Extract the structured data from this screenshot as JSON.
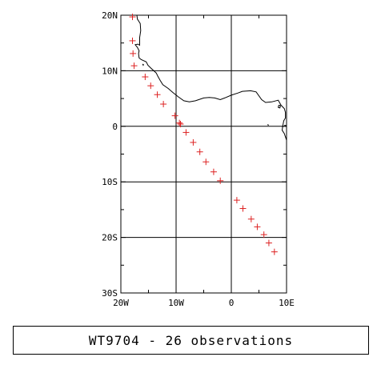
{
  "title": "WT9704 - 26 observations",
  "map": {
    "lon_range": [
      -20,
      10
    ],
    "lat_range": [
      -30,
      20
    ],
    "x_ticks": [
      {
        "value": -20,
        "label": "20W"
      },
      {
        "value": -10,
        "label": "10W"
      },
      {
        "value": 0,
        "label": "0"
      },
      {
        "value": 10,
        "label": "10E"
      }
    ],
    "y_ticks": [
      {
        "value": 20,
        "label": "20N"
      },
      {
        "value": 10,
        "label": "10N"
      },
      {
        "value": 0,
        "label": "0"
      },
      {
        "value": -10,
        "label": "10S"
      },
      {
        "value": -20,
        "label": "20S"
      },
      {
        "value": -30,
        "label": "30S"
      }
    ],
    "grid": true,
    "marker": "plus",
    "marker_color": "#dd2222",
    "frame_color": "#000000",
    "coastline": [
      [
        -17.1,
        20.0
      ],
      [
        -17.0,
        19.3
      ],
      [
        -16.5,
        18.5
      ],
      [
        -16.4,
        17.2
      ],
      [
        -16.6,
        16.0
      ],
      [
        -16.6,
        14.6
      ],
      [
        -16.9,
        14.8
      ],
      [
        -17.4,
        14.7
      ],
      [
        -17.0,
        14.2
      ],
      [
        -16.7,
        13.6
      ],
      [
        -16.8,
        13.1
      ],
      [
        -16.7,
        12.3
      ],
      [
        -16.3,
        12.0
      ],
      [
        -15.4,
        11.6
      ],
      [
        -15.1,
        11.0
      ],
      [
        -14.6,
        10.5
      ],
      [
        -13.6,
        9.6
      ],
      [
        -13.3,
        9.0
      ],
      [
        -12.9,
        8.3
      ],
      [
        -12.4,
        7.5
      ],
      [
        -11.4,
        6.8
      ],
      [
        -10.6,
        6.1
      ],
      [
        -9.6,
        5.3
      ],
      [
        -8.6,
        4.6
      ],
      [
        -7.6,
        4.4
      ],
      [
        -6.5,
        4.6
      ],
      [
        -5.0,
        5.1
      ],
      [
        -4.0,
        5.2
      ],
      [
        -3.0,
        5.1
      ],
      [
        -2.0,
        4.8
      ],
      [
        -1.2,
        5.1
      ],
      [
        0.0,
        5.6
      ],
      [
        1.2,
        6.0
      ],
      [
        2.0,
        6.3
      ],
      [
        3.5,
        6.4
      ],
      [
        4.5,
        6.2
      ],
      [
        5.5,
        4.8
      ],
      [
        6.2,
        4.3
      ],
      [
        7.3,
        4.4
      ],
      [
        8.5,
        4.7
      ],
      [
        9.0,
        3.8
      ],
      [
        9.6,
        3.2
      ],
      [
        9.8,
        2.5
      ],
      [
        9.8,
        1.5
      ],
      [
        9.5,
        1.0
      ],
      [
        9.3,
        0.0
      ],
      [
        9.2,
        -0.7
      ],
      [
        9.6,
        -1.3
      ],
      [
        10.0,
        -2.5
      ]
    ],
    "islands": [
      [
        [
          -16.1,
          11.2
        ],
        [
          -15.9,
          11.1
        ],
        [
          -16.0,
          10.9
        ]
      ],
      [
        [
          8.6,
          3.8
        ],
        [
          8.9,
          3.7
        ],
        [
          8.8,
          3.3
        ],
        [
          8.5,
          3.4
        ],
        [
          8.6,
          3.8
        ]
      ],
      [
        [
          6.5,
          0.3
        ],
        [
          6.8,
          0.2
        ]
      ],
      [
        [
          9.6,
          0.2
        ],
        [
          10.0,
          0.1
        ]
      ]
    ]
  },
  "chart_data": {
    "type": "scatter",
    "title": "WT9704 - 26 observations",
    "xlabel": "",
    "ylabel": "",
    "xlim": [
      -20,
      10
    ],
    "ylim": [
      -30,
      20
    ],
    "grid": true,
    "x": [
      -17.9,
      -17.9,
      -17.8,
      -17.6,
      -15.6,
      -14.6,
      -13.4,
      -12.3,
      -10.2,
      -9.4,
      -9.2,
      -8.2,
      -6.9,
      -5.7,
      -4.6,
      -3.2,
      -2.0,
      1.0,
      2.1,
      3.6,
      4.7,
      5.9,
      6.8,
      7.8
    ],
    "y": [
      19.7,
      15.4,
      13.1,
      10.9,
      8.9,
      7.3,
      5.7,
      4.0,
      1.9,
      0.6,
      0.4,
      -1.1,
      -2.9,
      -4.6,
      -6.4,
      -8.2,
      -9.8,
      -13.3,
      -14.8,
      -16.7,
      -18.1,
      -19.5,
      -21.0,
      -22.6
    ],
    "series": [
      {
        "x": [
          -17.9,
          -17.9,
          -17.8,
          -17.6,
          -15.6,
          -14.6,
          -13.4,
          -12.3,
          -10.2,
          -9.4,
          -9.2,
          -8.2,
          -6.9,
          -5.7,
          -4.6,
          -3.2,
          -2.0,
          1.0,
          2.1,
          3.6,
          4.7,
          5.9,
          6.8,
          7.8
        ],
        "y": [
          19.7,
          15.4,
          13.1,
          10.9,
          8.9,
          7.3,
          5.7,
          4.0,
          1.9,
          0.6,
          0.4,
          -1.1,
          -2.9,
          -4.6,
          -6.4,
          -8.2,
          -9.8,
          -13.3,
          -14.8,
          -16.7,
          -18.1,
          -19.5,
          -21.0,
          -22.6
        ]
      }
    ]
  }
}
